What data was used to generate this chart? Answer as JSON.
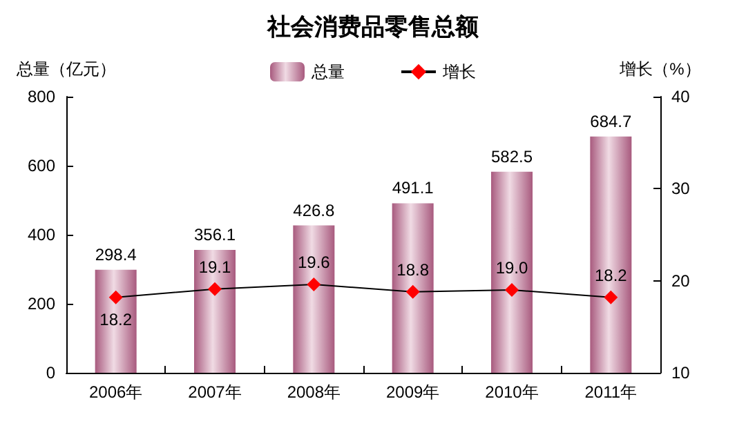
{
  "chart_data": {
    "type": "bar",
    "title": "社会消费品零售总额",
    "ylabel": "总量（亿元）",
    "y2label": "增长（%）",
    "categories": [
      "2006年",
      "2007年",
      "2008年",
      "2009年",
      "2010年",
      "2011年"
    ],
    "series": [
      {
        "name": "总量",
        "color": "#a85a7e",
        "values": [
          298.4,
          356.1,
          426.8,
          491.1,
          582.5,
          684.7
        ]
      },
      {
        "name": "增长",
        "type": "line",
        "axis": "y2",
        "color": "#000000",
        "colors": [
          "#ff0000",
          "#ff0000",
          "#ff0000",
          "#ff0000",
          "#ff0000",
          "#ff0000"
        ],
        "marker": "diamond",
        "values": [
          18.2,
          19.1,
          19.6,
          18.8,
          19.0,
          18.2
        ],
        "value_labels": [
          "18.2",
          "19.1",
          "19.6",
          "18.8",
          "19.0",
          "18.2"
        ]
      }
    ],
    "ylim": [
      0,
      800
    ],
    "yticks": [
      0,
      200,
      400,
      600,
      800
    ],
    "y2lim": [
      10,
      40
    ],
    "y2ticks": [
      10,
      20,
      30,
      40
    ],
    "grid": false,
    "legend": "top",
    "data_labels": true
  }
}
